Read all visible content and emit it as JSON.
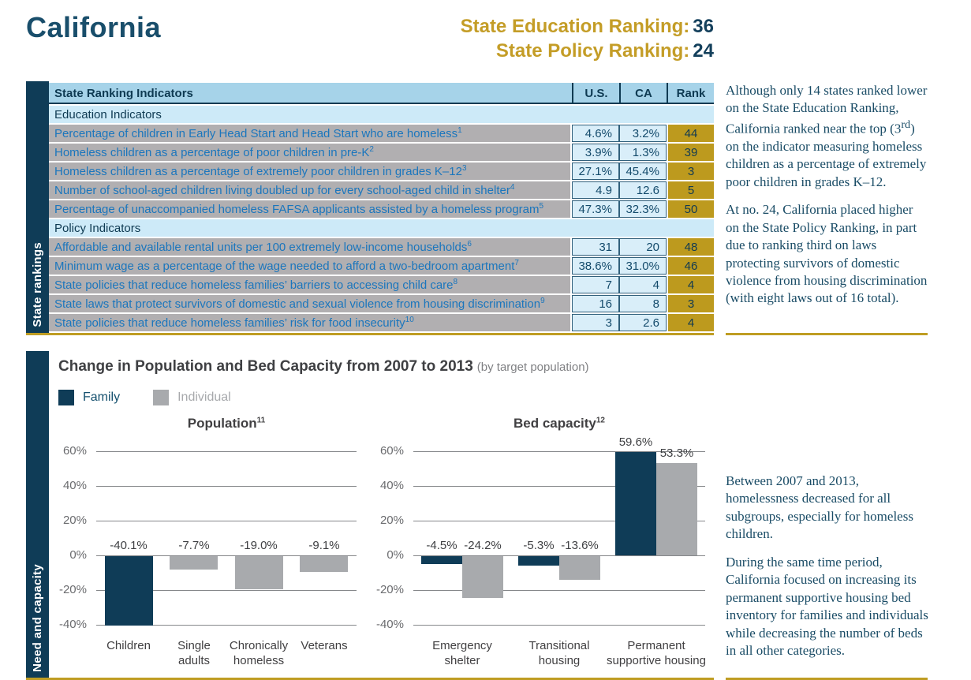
{
  "colors": {
    "navy": "#0f3c57",
    "gold": "#c49d27",
    "gold_rank_cell": "#bd9a1e",
    "table_header_blue": "#a6d3e9",
    "table_subheader_blue": "#cdeaf8",
    "table_cell_blue": "#d9eef9",
    "table_label_gray": "#b1afb1",
    "bar_gray": "#a8aaad"
  },
  "header": {
    "title": "California",
    "education_ranking_label": "State Education Ranking:",
    "education_ranking_value": "36",
    "policy_ranking_label": "State Policy Ranking:",
    "policy_ranking_value": "24"
  },
  "rankings": {
    "side_label": "State rankings",
    "table": {
      "columns": {
        "label": "State Ranking Indicators",
        "us": "U.S.",
        "ca": "CA",
        "rank": "Rank"
      },
      "education_header": "Education Indicators",
      "policy_header": "Policy Indicators",
      "rows": [
        {
          "label": "Percentage of children in Early Head Start and Head Start who are homeless",
          "sup": "1",
          "us": "4.6%",
          "ca": "3.2%",
          "rank": "44"
        },
        {
          "label": "Homeless children as a percentage of poor children in pre-K",
          "sup": "2",
          "us": "3.9%",
          "ca": "1.3%",
          "rank": "39"
        },
        {
          "label": "Homeless children as a percentage of extremely poor children in grades K–12",
          "sup": "3",
          "us": "27.1%",
          "ca": "45.4%",
          "rank": "3"
        },
        {
          "label": "Number of school-aged children living doubled up for every school-aged child in shelter",
          "sup": "4",
          "us": "4.9",
          "ca": "12.6",
          "rank": "5"
        },
        {
          "label": "Percentage of unaccompanied homeless FAFSA applicants assisted by a homeless program",
          "sup": "5",
          "us": "47.3%",
          "ca": "32.3%",
          "rank": "50"
        },
        {
          "label": "Affordable and available rental units per 100 extremely low-income households",
          "sup": "6",
          "us": "31",
          "ca": "20",
          "rank": "48"
        },
        {
          "label": "Minimum wage as a percentage of the wage needed to afford a two-bedroom apartment",
          "sup": "7",
          "us": "38.6%",
          "ca": "31.0%",
          "rank": "46"
        },
        {
          "label": "State policies that reduce homeless families’ barriers to accessing child care",
          "sup": "8",
          "us": "7",
          "ca": "4",
          "rank": "4"
        },
        {
          "label": "State laws that protect survivors of domestic and sexual violence from housing discrimination",
          "sup": "9",
          "us": "16",
          "ca": "8",
          "rank": "3"
        },
        {
          "label": "State policies that reduce homeless families’ risk for food insecurity",
          "sup": "10",
          "us": "3",
          "ca": "2.6",
          "rank": "4"
        }
      ]
    },
    "aside": {
      "p1_a": "Although only 14 states ranked lower on the State Education Ranking, California ranked near the top (3",
      "p1_sup": "rd",
      "p1_b": ") on the indicator measuring homeless children as a percentage of extremely poor children in grades K–12.",
      "p2": "At no. 24, California placed higher on the State Policy Ranking, in part due to ranking third on laws protecting survivors of domestic violence from housing discrimination (with eight laws out of 16 total)."
    }
  },
  "capacity": {
    "side_label": "Need and capacity",
    "title": "Change in Population and Bed Capacity from 2007 to 2013",
    "title_note": "(by target population)",
    "legend": [
      {
        "label": "Family",
        "color": "#0f3c57",
        "text_color": "#14506e"
      },
      {
        "label": "Individual",
        "color": "#a8aaad",
        "text_color": "#a7a9ac"
      }
    ],
    "aside": {
      "p1": "Between 2007 and 2013, homelessness decreased for all subgroups, especially for homeless children.",
      "p2": "During the same time period, California focused on increasing its permanent supportive housing bed inventory for families and individuals while decreasing the number of beds in all other categories."
    }
  },
  "chart_data": [
    {
      "type": "bar",
      "title": "Population",
      "title_sup": "11",
      "unit": "%",
      "ylim": [
        -44,
        64
      ],
      "yticks": [
        60,
        40,
        20,
        0,
        -20,
        -40
      ],
      "grid": true,
      "legend_position": "top-left-shared",
      "groups": [
        {
          "category": "Children",
          "bars": [
            {
              "series": "Family",
              "value": -40.1,
              "label": "-40.1%"
            }
          ]
        },
        {
          "category": "Single\nadults",
          "bars": [
            {
              "series": "Individual",
              "value": -7.7,
              "label": "-7.7%"
            }
          ]
        },
        {
          "category": "Chronically\nhomeless",
          "bars": [
            {
              "series": "Individual",
              "value": -19.0,
              "label": "-19.0%"
            }
          ]
        },
        {
          "category": "Veterans",
          "bars": [
            {
              "series": "Individual",
              "value": -9.1,
              "label": "-9.1%"
            }
          ]
        }
      ]
    },
    {
      "type": "bar",
      "title": "Bed capacity",
      "title_sup": "12",
      "unit": "%",
      "ylim": [
        -44,
        64
      ],
      "yticks": [
        60,
        40,
        20,
        0,
        -20,
        -40
      ],
      "grid": true,
      "legend_position": "top-left-shared",
      "groups": [
        {
          "category": "Emergency\nshelter",
          "bars": [
            {
              "series": "Family",
              "value": -4.5,
              "label": "-4.5%"
            },
            {
              "series": "Individual",
              "value": -24.2,
              "label": "-24.2%"
            }
          ]
        },
        {
          "category": "Transitional\nhousing",
          "bars": [
            {
              "series": "Family",
              "value": -5.3,
              "label": "-5.3%"
            },
            {
              "series": "Individual",
              "value": -13.6,
              "label": "-13.6%"
            }
          ]
        },
        {
          "category": "Permanent\nsupportive housing",
          "bars": [
            {
              "series": "Family",
              "value": 59.6,
              "label": "59.6%"
            },
            {
              "series": "Individual",
              "value": 53.3,
              "label": "53.3%"
            }
          ]
        }
      ]
    }
  ]
}
